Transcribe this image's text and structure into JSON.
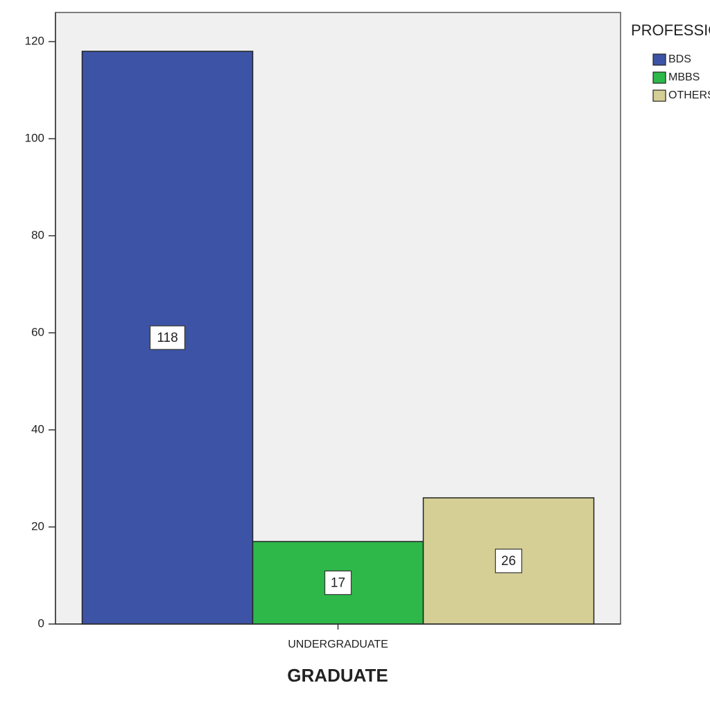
{
  "chart_data": {
    "type": "bar",
    "x_label": "GRADUATE",
    "legend_title": "PROFESSION",
    "categories": [
      "UNDERGRADUATE"
    ],
    "series": [
      {
        "name": "BDS",
        "color": "#3d53a5",
        "values": [
          118
        ]
      },
      {
        "name": "MBBS",
        "color": "#2fb84a",
        "values": [
          17
        ]
      },
      {
        "name": "OTHERS",
        "color": "#d5cf96",
        "values": [
          26
        ]
      }
    ],
    "ylim": [
      0,
      126
    ],
    "yticks": [
      0,
      20,
      40,
      60,
      80,
      100,
      120
    ],
    "data_labels": true,
    "legend": "right",
    "grid": false
  }
}
